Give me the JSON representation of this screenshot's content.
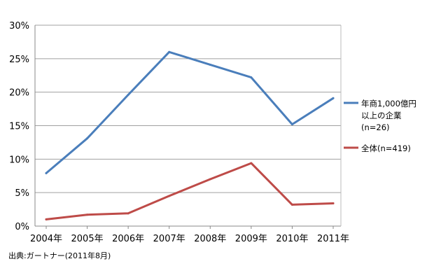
{
  "chart_data": {
    "type": "line",
    "categories": [
      "2004年",
      "2005年",
      "2006年",
      "2007年",
      "2008年",
      "2009年",
      "2010年",
      "2011年"
    ],
    "ylim": [
      0,
      30
    ],
    "y_ticks": [
      0,
      5,
      10,
      15,
      20,
      25,
      30
    ],
    "y_tick_labels": [
      "0%",
      "5%",
      "10%",
      "15%",
      "20%",
      "25%",
      "30%"
    ],
    "grid": "horizontal",
    "legend_position": "right",
    "series": [
      {
        "name": "年商1,000億円以上の企業(n=26)",
        "legend_lines": [
          "年商1,000億円",
          "以上の企業",
          "(n=26)"
        ],
        "color": "#4a7ebb",
        "values": [
          7.9,
          13.1,
          19.6,
          26.0,
          24.1,
          22.2,
          15.2,
          19.1
        ]
      },
      {
        "name": "全体(n=419)",
        "legend_lines": [
          "全体(n=419)"
        ],
        "color": "#be4b48",
        "values": [
          1.0,
          1.7,
          1.9,
          4.5,
          7.0,
          9.4,
          3.2,
          3.4
        ]
      }
    ]
  },
  "source": "出典:ガートナー(2011年8月)"
}
